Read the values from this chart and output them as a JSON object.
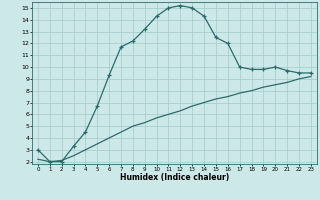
{
  "xlabel": "Humidex (Indice chaleur)",
  "bg_color": "#cce8e8",
  "grid_color": "#aacece",
  "line_color": "#2d6b6b",
  "xlim": [
    -0.5,
    23.5
  ],
  "ylim": [
    1.8,
    15.5
  ],
  "xticks": [
    0,
    1,
    2,
    3,
    4,
    5,
    6,
    7,
    8,
    9,
    10,
    11,
    12,
    13,
    14,
    15,
    16,
    17,
    18,
    19,
    20,
    21,
    22,
    23
  ],
  "yticks": [
    2,
    3,
    4,
    5,
    6,
    7,
    8,
    9,
    10,
    11,
    12,
    13,
    14,
    15
  ],
  "curve1_x": [
    0,
    1,
    2,
    3,
    4,
    5,
    6,
    7,
    8,
    9,
    10,
    11,
    12,
    13,
    14,
    15,
    16,
    17,
    18,
    19,
    20,
    21,
    22,
    23
  ],
  "curve1_y": [
    3.0,
    2.0,
    2.0,
    3.3,
    4.5,
    6.7,
    9.3,
    11.7,
    12.2,
    13.2,
    14.3,
    15.0,
    15.2,
    15.0,
    14.3,
    12.5,
    12.0,
    10.0,
    9.8,
    9.8,
    10.0,
    9.7,
    9.5,
    9.5
  ],
  "curve2_x": [
    0,
    1,
    2,
    3,
    4,
    5,
    6,
    7,
    8,
    9,
    10,
    11,
    12,
    13,
    14,
    15,
    16,
    17,
    18,
    19,
    20,
    21,
    22,
    23
  ],
  "curve2_y": [
    2.2,
    2.0,
    2.1,
    2.5,
    3.0,
    3.5,
    4.0,
    4.5,
    5.0,
    5.3,
    5.7,
    6.0,
    6.3,
    6.7,
    7.0,
    7.3,
    7.5,
    7.8,
    8.0,
    8.3,
    8.5,
    8.7,
    9.0,
    9.2
  ]
}
